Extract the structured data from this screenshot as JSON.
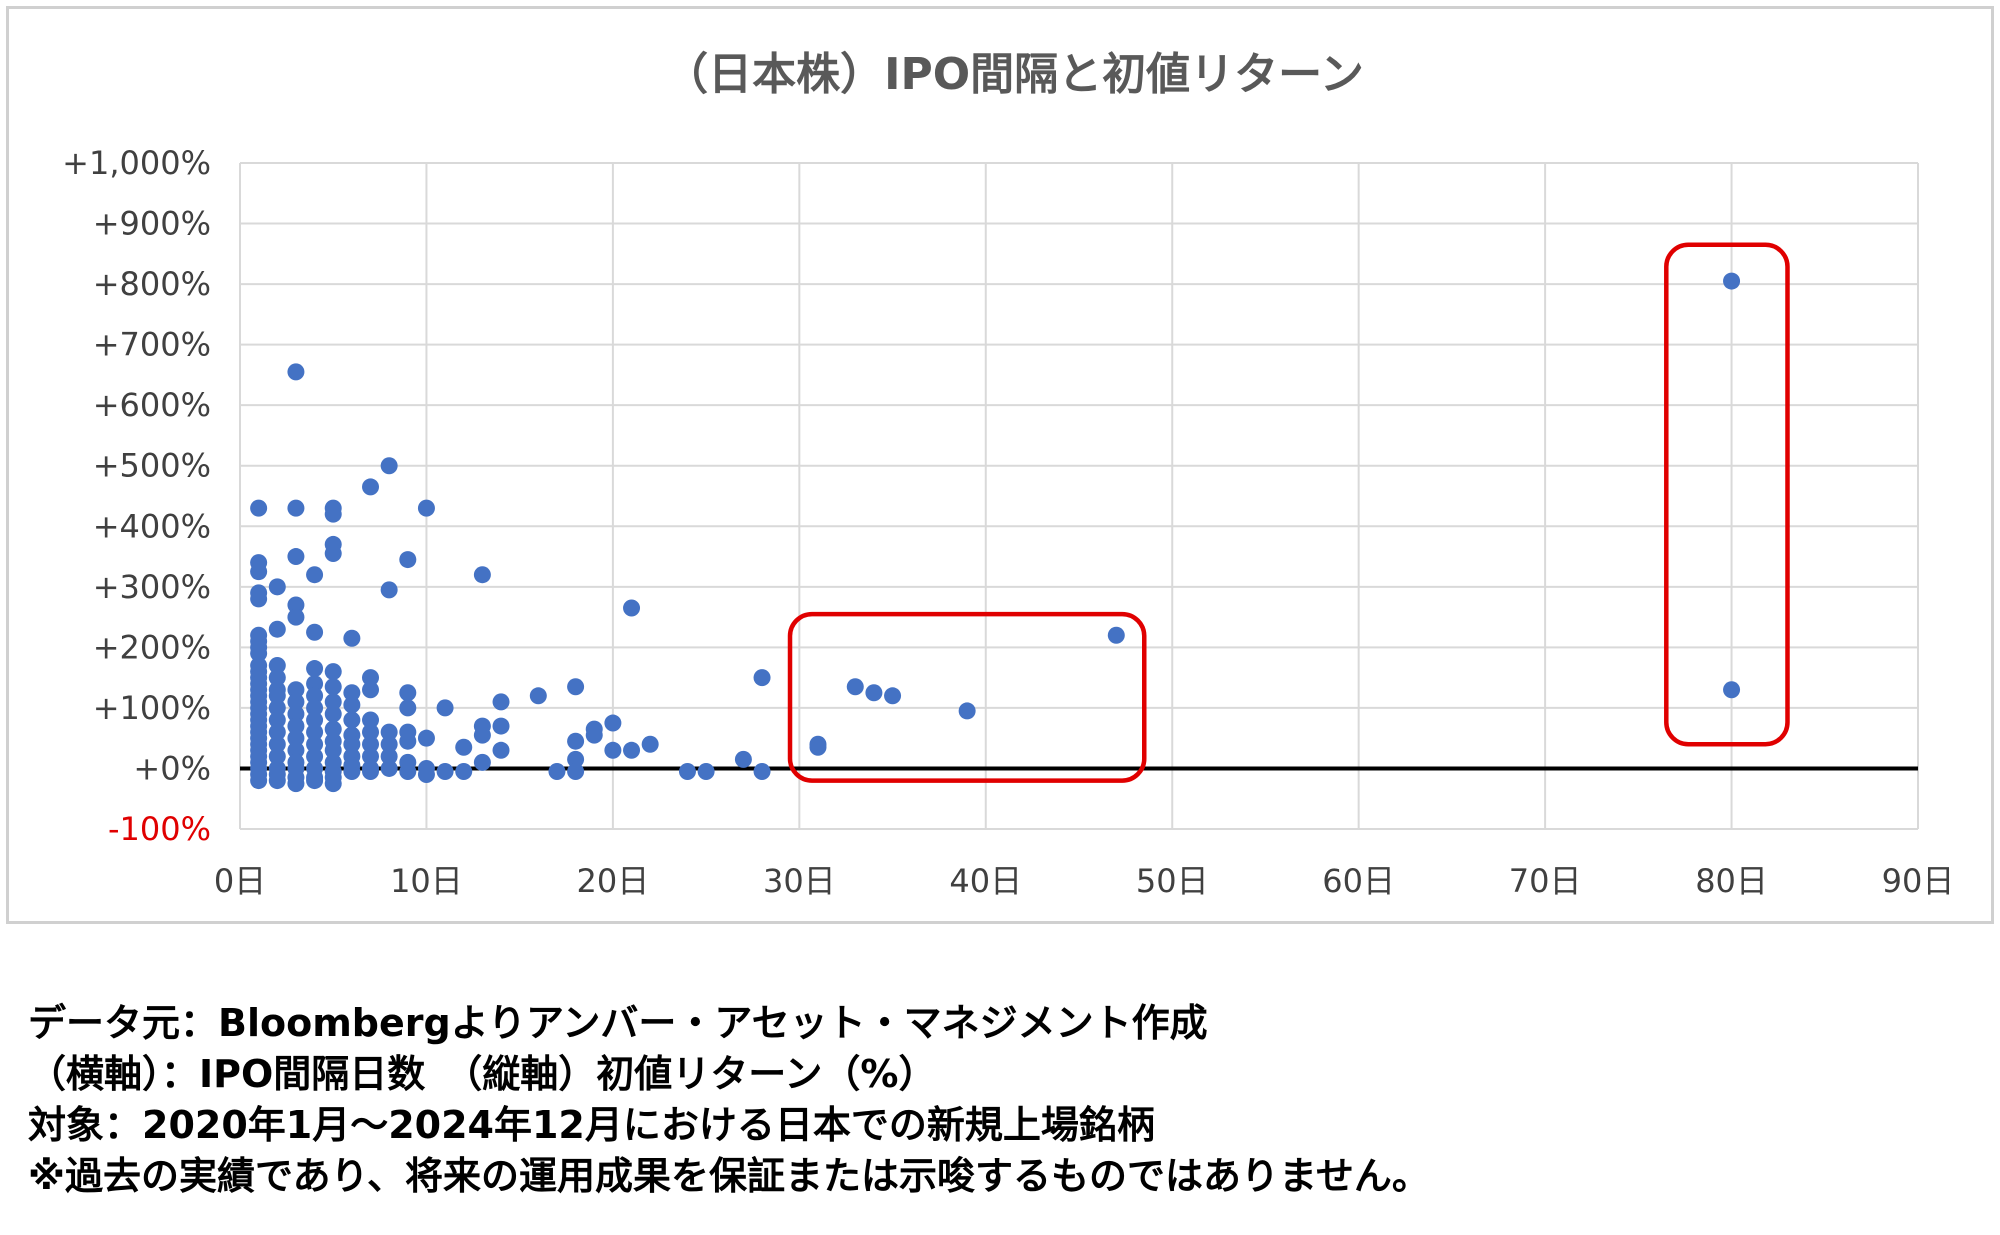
{
  "colors": {
    "point": "#4472C4",
    "highlight": "#E00000",
    "grid": "#D9D9D9",
    "zero_line": "#000000",
    "negative_tick": "#E00000"
  },
  "notes": [
    "データ元：Bloombergよりアンバー・アセット・マネジメント作成",
    "（横軸）：IPO間隔日数　（縦軸）初値リターン（%）",
    "対象：2020年1月〜2024年12月における日本での新規上場銘柄",
    "※過去の実績であり、将来の運用成果を保証または示唆するものではありません。"
  ],
  "chart_data": {
    "type": "scatter",
    "title": "（日本株）IPO間隔と初値リターン",
    "xlabel": "",
    "ylabel": "",
    "xlim": [
      0,
      90
    ],
    "ylim": [
      -100,
      1000
    ],
    "x_ticks": [
      0,
      10,
      20,
      30,
      40,
      50,
      60,
      70,
      80,
      90
    ],
    "x_tick_labels": [
      "0日",
      "10日",
      "20日",
      "30日",
      "40日",
      "50日",
      "60日",
      "70日",
      "80日",
      "90日"
    ],
    "y_ticks": [
      -100,
      0,
      100,
      200,
      300,
      400,
      500,
      600,
      700,
      800,
      900,
      1000
    ],
    "y_tick_labels": [
      "-100%",
      "+0%",
      "+100%",
      "+200%",
      "+300%",
      "+400%",
      "+500%",
      "+600%",
      "+700%",
      "+800%",
      "+900%",
      "+1,000%"
    ],
    "grid": true,
    "legend": "none",
    "highlight_boxes": [
      {
        "x_range": [
          29.5,
          48.5
        ],
        "y_range": [
          -20,
          255
        ]
      },
      {
        "x_range": [
          76.5,
          83
        ],
        "y_range": [
          40,
          865
        ]
      }
    ],
    "points": [
      [
        1,
        430
      ],
      [
        1,
        340
      ],
      [
        1,
        325
      ],
      [
        1,
        290
      ],
      [
        1,
        280
      ],
      [
        1,
        220
      ],
      [
        1,
        210
      ],
      [
        1,
        200
      ],
      [
        1,
        190
      ],
      [
        1,
        170
      ],
      [
        1,
        160
      ],
      [
        1,
        150
      ],
      [
        1,
        140
      ],
      [
        1,
        130
      ],
      [
        1,
        120
      ],
      [
        1,
        110
      ],
      [
        1,
        100
      ],
      [
        1,
        90
      ],
      [
        1,
        80
      ],
      [
        1,
        70
      ],
      [
        1,
        60
      ],
      [
        1,
        50
      ],
      [
        1,
        40
      ],
      [
        1,
        30
      ],
      [
        1,
        20
      ],
      [
        1,
        10
      ],
      [
        1,
        0
      ],
      [
        1,
        -10
      ],
      [
        1,
        -20
      ],
      [
        2,
        300
      ],
      [
        2,
        230
      ],
      [
        2,
        170
      ],
      [
        2,
        150
      ],
      [
        2,
        130
      ],
      [
        2,
        120
      ],
      [
        2,
        100
      ],
      [
        2,
        80
      ],
      [
        2,
        60
      ],
      [
        2,
        40
      ],
      [
        2,
        20
      ],
      [
        2,
        0
      ],
      [
        2,
        -10
      ],
      [
        2,
        -20
      ],
      [
        3,
        655
      ],
      [
        3,
        430
      ],
      [
        3,
        350
      ],
      [
        3,
        270
      ],
      [
        3,
        250
      ],
      [
        3,
        130
      ],
      [
        3,
        110
      ],
      [
        3,
        90
      ],
      [
        3,
        70
      ],
      [
        3,
        50
      ],
      [
        3,
        30
      ],
      [
        3,
        10
      ],
      [
        3,
        0
      ],
      [
        3,
        -15
      ],
      [
        3,
        -25
      ],
      [
        4,
        320
      ],
      [
        4,
        225
      ],
      [
        4,
        165
      ],
      [
        4,
        140
      ],
      [
        4,
        120
      ],
      [
        4,
        100
      ],
      [
        4,
        80
      ],
      [
        4,
        60
      ],
      [
        4,
        40
      ],
      [
        4,
        20
      ],
      [
        4,
        0
      ],
      [
        4,
        -15
      ],
      [
        4,
        -20
      ],
      [
        5,
        430
      ],
      [
        5,
        420
      ],
      [
        5,
        370
      ],
      [
        5,
        355
      ],
      [
        5,
        160
      ],
      [
        5,
        135
      ],
      [
        5,
        110
      ],
      [
        5,
        90
      ],
      [
        5,
        65
      ],
      [
        5,
        45
      ],
      [
        5,
        30
      ],
      [
        5,
        10
      ],
      [
        5,
        -5
      ],
      [
        5,
        -15
      ],
      [
        5,
        -25
      ],
      [
        6,
        215
      ],
      [
        6,
        125
      ],
      [
        6,
        105
      ],
      [
        6,
        80
      ],
      [
        6,
        55
      ],
      [
        6,
        40
      ],
      [
        6,
        20
      ],
      [
        6,
        5
      ],
      [
        6,
        -5
      ],
      [
        7,
        465
      ],
      [
        7,
        150
      ],
      [
        7,
        130
      ],
      [
        7,
        80
      ],
      [
        7,
        60
      ],
      [
        7,
        40
      ],
      [
        7,
        20
      ],
      [
        7,
        0
      ],
      [
        7,
        -5
      ],
      [
        8,
        500
      ],
      [
        8,
        295
      ],
      [
        8,
        60
      ],
      [
        8,
        40
      ],
      [
        8,
        20
      ],
      [
        8,
        0
      ],
      [
        9,
        345
      ],
      [
        9,
        125
      ],
      [
        9,
        100
      ],
      [
        9,
        60
      ],
      [
        9,
        45
      ],
      [
        9,
        10
      ],
      [
        9,
        -5
      ],
      [
        10,
        430
      ],
      [
        10,
        50
      ],
      [
        10,
        0
      ],
      [
        10,
        -10
      ],
      [
        11,
        100
      ],
      [
        11,
        -5
      ],
      [
        12,
        35
      ],
      [
        12,
        -5
      ],
      [
        13,
        320
      ],
      [
        13,
        70
      ],
      [
        13,
        55
      ],
      [
        13,
        10
      ],
      [
        14,
        110
      ],
      [
        14,
        70
      ],
      [
        14,
        30
      ],
      [
        16,
        120
      ],
      [
        17,
        -5
      ],
      [
        18,
        135
      ],
      [
        18,
        45
      ],
      [
        18,
        15
      ],
      [
        18,
        -5
      ],
      [
        19,
        65
      ],
      [
        19,
        55
      ],
      [
        20,
        75
      ],
      [
        20,
        30
      ],
      [
        21,
        265
      ],
      [
        21,
        30
      ],
      [
        22,
        40
      ],
      [
        24,
        -5
      ],
      [
        25,
        -5
      ],
      [
        27,
        15
      ],
      [
        28,
        150
      ],
      [
        28,
        -5
      ],
      [
        31,
        40
      ],
      [
        31,
        35
      ],
      [
        33,
        135
      ],
      [
        34,
        125
      ],
      [
        35,
        120
      ],
      [
        39,
        95
      ],
      [
        47,
        220
      ],
      [
        80,
        805
      ],
      [
        80,
        130
      ]
    ]
  }
}
